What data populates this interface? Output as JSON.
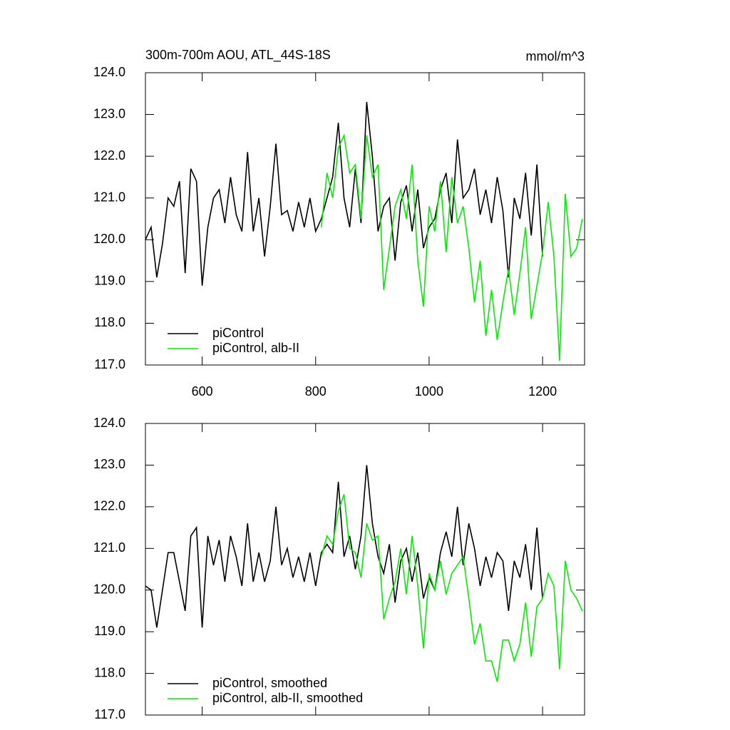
{
  "chart_data": [
    {
      "type": "line",
      "title": "300m-700m AOU, ATL_44S-18S",
      "title_right": "mmol/m^3",
      "xlim": [
        500,
        1274
      ],
      "xticks": [
        600,
        800,
        1000,
        1200
      ],
      "show_xtick_labels": true,
      "ylim": [
        117,
        124
      ],
      "yticks": [
        {
          "value": 117,
          "label": "117.0"
        },
        {
          "value": 118,
          "label": "118.0"
        },
        {
          "value": 119,
          "label": "119.0"
        },
        {
          "value": 120,
          "label": "120.0"
        },
        {
          "value": 121,
          "label": "121.0"
        },
        {
          "value": 122,
          "label": "122.0"
        },
        {
          "value": 123,
          "label": "123.0"
        },
        {
          "value": 124,
          "label": "124.0"
        }
      ],
      "legend": "lower left",
      "series": [
        {
          "name": "piControl",
          "color": "#000000",
          "x": [
            500,
            510,
            520,
            530,
            540,
            550,
            560,
            570,
            580,
            590,
            600,
            610,
            620,
            630,
            640,
            650,
            660,
            670,
            680,
            690,
            700,
            710,
            720,
            730,
            740,
            750,
            760,
            770,
            780,
            790,
            800,
            810,
            820,
            830,
            840,
            850,
            860,
            870,
            880,
            890,
            900,
            910,
            920,
            930,
            940,
            950,
            960,
            970,
            980,
            990,
            1000,
            1010,
            1020,
            1030,
            1040,
            1050,
            1060,
            1070,
            1080,
            1090,
            1100,
            1110,
            1120,
            1130,
            1140,
            1150,
            1160,
            1170,
            1180,
            1190,
            1200
          ],
          "values": [
            120.0,
            120.3,
            119.1,
            119.9,
            121.0,
            120.8,
            121.4,
            119.2,
            121.7,
            121.4,
            118.9,
            120.3,
            121.0,
            121.2,
            120.4,
            121.5,
            120.6,
            120.2,
            122.1,
            120.2,
            121.0,
            119.6,
            120.8,
            122.3,
            120.6,
            120.7,
            120.2,
            120.9,
            120.3,
            121.0,
            120.2,
            120.5,
            121.0,
            121.5,
            122.8,
            121.0,
            120.3,
            121.7,
            120.4,
            123.3,
            122.0,
            120.2,
            120.8,
            121.0,
            119.5,
            120.9,
            121.3,
            120.2,
            121.2,
            119.8,
            120.3,
            120.5,
            121.2,
            121.6,
            120.4,
            122.4,
            121.0,
            121.2,
            121.7,
            120.6,
            121.2,
            120.4,
            121.5,
            120.7,
            119.1,
            121.0,
            120.5,
            121.6,
            120.1,
            121.8,
            119.6
          ]
        },
        {
          "name": "piControl, alb-II",
          "color": "#00ee00",
          "x": [
            810,
            820,
            830,
            840,
            850,
            860,
            870,
            880,
            890,
            900,
            910,
            920,
            930,
            940,
            950,
            960,
            970,
            980,
            990,
            1000,
            1010,
            1020,
            1030,
            1040,
            1050,
            1060,
            1070,
            1080,
            1090,
            1100,
            1110,
            1120,
            1130,
            1140,
            1150,
            1160,
            1170,
            1180,
            1190,
            1200,
            1210,
            1220,
            1230,
            1240,
            1250,
            1260,
            1270
          ],
          "values": [
            120.3,
            121.6,
            121.0,
            122.2,
            122.5,
            121.6,
            121.8,
            120.5,
            122.5,
            121.5,
            121.8,
            118.8,
            119.8,
            120.8,
            121.2,
            120.5,
            121.8,
            119.5,
            118.4,
            120.8,
            120.2,
            121.4,
            119.7,
            121.5,
            120.4,
            120.8,
            119.8,
            118.5,
            119.5,
            117.7,
            118.8,
            117.6,
            118.5,
            119.3,
            118.2,
            119.2,
            120.3,
            118.1,
            118.9,
            119.7,
            120.9,
            119.6,
            117.1,
            121.1,
            119.6,
            119.8,
            120.5
          ]
        }
      ]
    },
    {
      "type": "line",
      "xlim": [
        500,
        1274
      ],
      "xticks": [
        600,
        800,
        1000,
        1200
      ],
      "show_xtick_labels": false,
      "ylim": [
        117,
        124
      ],
      "yticks": [
        {
          "value": 117,
          "label": "117.0"
        },
        {
          "value": 118,
          "label": "118.0"
        },
        {
          "value": 119,
          "label": "119.0"
        },
        {
          "value": 120,
          "label": "120.0"
        },
        {
          "value": 121,
          "label": "121.0"
        },
        {
          "value": 122,
          "label": "122.0"
        },
        {
          "value": 123,
          "label": "123.0"
        },
        {
          "value": 124,
          "label": "124.0"
        }
      ],
      "legend": "lower left",
      "series": [
        {
          "name": "piControl, smoothed",
          "color": "#000000",
          "x": [
            500,
            510,
            520,
            530,
            540,
            550,
            560,
            570,
            580,
            590,
            600,
            610,
            620,
            630,
            640,
            650,
            660,
            670,
            680,
            690,
            700,
            710,
            720,
            730,
            740,
            750,
            760,
            770,
            780,
            790,
            800,
            810,
            820,
            830,
            840,
            850,
            860,
            870,
            880,
            890,
            900,
            910,
            920,
            930,
            940,
            950,
            960,
            970,
            980,
            990,
            1000,
            1010,
            1020,
            1030,
            1040,
            1050,
            1060,
            1070,
            1080,
            1090,
            1100,
            1110,
            1120,
            1130,
            1140,
            1150,
            1160,
            1170,
            1180,
            1190,
            1200
          ],
          "values": [
            120.1,
            120.0,
            119.1,
            120.0,
            120.9,
            120.9,
            120.2,
            119.5,
            121.3,
            121.5,
            119.1,
            121.3,
            120.6,
            121.2,
            120.2,
            121.3,
            120.8,
            120.1,
            121.6,
            120.2,
            120.9,
            120.2,
            120.7,
            122.0,
            120.6,
            121.0,
            120.3,
            120.8,
            120.2,
            120.9,
            120.1,
            120.9,
            121.1,
            120.9,
            122.6,
            120.8,
            121.3,
            120.5,
            121.3,
            123.0,
            121.6,
            120.8,
            120.4,
            121.1,
            119.7,
            120.7,
            121.0,
            120.2,
            120.9,
            119.8,
            120.3,
            120.0,
            120.9,
            121.4,
            120.8,
            122.0,
            120.6,
            121.6,
            121.0,
            120.1,
            120.8,
            120.3,
            120.9,
            120.7,
            119.5,
            120.7,
            120.3,
            121.1,
            120.0,
            121.5,
            119.8
          ]
        },
        {
          "name": "piControl, alb-II, smoothed",
          "color": "#00ee00",
          "x": [
            810,
            820,
            830,
            840,
            850,
            860,
            870,
            880,
            890,
            900,
            910,
            920,
            930,
            940,
            950,
            960,
            970,
            980,
            990,
            1000,
            1010,
            1020,
            1030,
            1040,
            1050,
            1060,
            1070,
            1080,
            1090,
            1100,
            1110,
            1120,
            1130,
            1140,
            1150,
            1160,
            1170,
            1180,
            1190,
            1200,
            1210,
            1220,
            1230,
            1240,
            1250,
            1260,
            1270
          ],
          "values": [
            120.8,
            121.3,
            121.1,
            121.9,
            122.3,
            121.0,
            120.9,
            120.3,
            121.6,
            121.2,
            121.3,
            119.3,
            119.8,
            120.2,
            121.0,
            119.9,
            121.3,
            120.1,
            118.6,
            120.4,
            120.0,
            120.7,
            119.9,
            120.4,
            120.6,
            120.8,
            119.8,
            118.7,
            119.2,
            118.3,
            118.3,
            117.8,
            118.8,
            118.8,
            118.3,
            118.7,
            119.7,
            118.4,
            119.6,
            119.8,
            120.4,
            120.1,
            118.1,
            120.7,
            120.0,
            119.8,
            119.5
          ]
        }
      ]
    }
  ]
}
